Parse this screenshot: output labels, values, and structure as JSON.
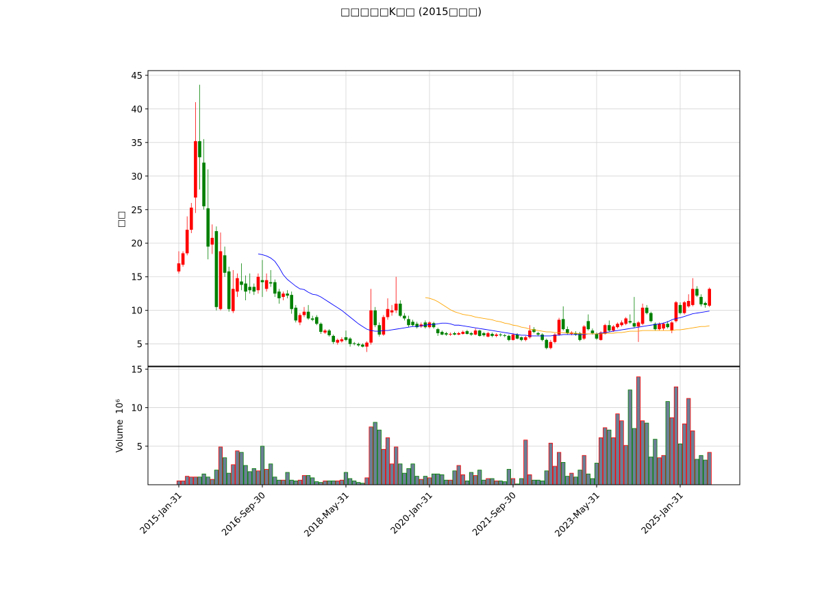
{
  "chart_data": {
    "type": "candlestick",
    "title": "□□□□□K□□ (2015□□□)",
    "ylabel": "□□",
    "categories": [
      "2015-Jan-31",
      null,
      null,
      null,
      null,
      null,
      null,
      null,
      null,
      null,
      null,
      null,
      null,
      null,
      null,
      null,
      null,
      null,
      null,
      null,
      "2016-Sep-30",
      null,
      null,
      null,
      null,
      null,
      null,
      null,
      null,
      null,
      null,
      null,
      null,
      null,
      null,
      null,
      null,
      null,
      null,
      null,
      "2018-May-31",
      null,
      null,
      null,
      null,
      null,
      null,
      null,
      null,
      null,
      null,
      null,
      null,
      null,
      null,
      null,
      null,
      null,
      null,
      null,
      "2020-Jan-31",
      null,
      null,
      null,
      null,
      null,
      null,
      null,
      null,
      null,
      null,
      null,
      null,
      null,
      null,
      null,
      null,
      null,
      null,
      null,
      "2021-Sep-30",
      null,
      null,
      null,
      null,
      null,
      null,
      null,
      null,
      null,
      null,
      null,
      null,
      null,
      null,
      null,
      null,
      null,
      null,
      null,
      "2023-May-31",
      null,
      null,
      null,
      null,
      null,
      null,
      null,
      null,
      null,
      null,
      null,
      null,
      null,
      null,
      null,
      null,
      null,
      null,
      null,
      "2025-Jan-31",
      null,
      null,
      null,
      null,
      null,
      null,
      null
    ],
    "open": [
      15.8,
      16.8,
      18.5,
      22.0,
      26.8,
      35.2,
      32.0,
      25.2,
      19.8,
      21.8,
      10.2,
      18.2,
      15.8,
      9.9,
      12.8,
      14.3,
      14.0,
      13.5,
      13.5,
      13.0,
      14.5,
      13.2,
      14.2,
      14.2,
      12.8,
      12.0,
      12.5,
      12.3,
      10.4,
      8.2,
      9.3,
      9.8,
      8.8,
      9.0,
      8.0,
      6.7,
      7.0,
      6.2,
      5.2,
      5.4,
      6.0,
      5.8,
      5.1,
      5.0,
      4.9,
      4.6,
      5.2,
      10.0,
      7.8,
      6.4,
      9.0,
      9.7,
      10.0,
      11.0,
      9.2,
      8.7,
      8.3,
      8.0,
      7.6,
      8.2,
      7.5,
      8.1,
      7.2,
      6.8,
      6.6,
      6.4,
      6.6,
      6.4,
      6.5,
      6.9,
      6.6,
      6.4,
      7.0,
      6.6,
      6.1,
      6.5,
      6.2,
      6.4,
      6.3,
      6.2,
      5.6,
      6.4,
      6.0,
      5.6,
      6.0,
      7.2,
      6.6,
      6.4,
      5.6,
      4.4,
      5.3,
      6.4,
      8.7,
      7.2,
      6.5,
      6.6,
      6.6,
      5.8,
      8.4,
      7.0,
      6.5,
      5.6,
      6.5,
      7.8,
      7.0,
      7.5,
      7.8,
      8.0,
      8.4,
      8.1,
      7.6,
      8.0,
      10.4,
      9.6,
      8.0,
      7.2,
      7.3,
      8.0,
      7.0,
      8.4,
      10.8,
      9.6,
      10.6,
      10.8,
      13.2,
      12.0,
      11.1,
      10.7
    ],
    "high": [
      18.8,
      18.8,
      24.0,
      26.0,
      41.0,
      43.6,
      35.5,
      31.0,
      22.8,
      22.5,
      21.6,
      19.5,
      16.5,
      16.0,
      15.5,
      17.0,
      15.2,
      15.5,
      14.0,
      15.5,
      17.5,
      15.5,
      16.0,
      14.6,
      13.2,
      12.8,
      13.0,
      12.8,
      10.8,
      9.6,
      10.5,
      10.8,
      9.2,
      9.3,
      8.2,
      7.2,
      7.2,
      6.4,
      5.8,
      6.0,
      7.0,
      6.0,
      5.3,
      5.2,
      5.1,
      5.4,
      13.2,
      10.5,
      8.2,
      9.3,
      11.8,
      10.8,
      15.0,
      11.5,
      9.6,
      9.2,
      8.6,
      8.3,
      8.2,
      8.5,
      8.4,
      8.3,
      7.4,
      7.0,
      6.8,
      6.7,
      6.8,
      6.8,
      7.0,
      7.1,
      6.8,
      7.3,
      7.1,
      6.8,
      6.8,
      6.7,
      6.6,
      6.6,
      6.5,
      6.4,
      6.6,
      6.6,
      6.1,
      6.2,
      7.8,
      7.5,
      6.8,
      6.6,
      5.8,
      5.6,
      6.6,
      8.9,
      10.6,
      7.6,
      6.9,
      6.9,
      6.8,
      7.8,
      9.4,
      7.3,
      6.7,
      6.9,
      8.0,
      8.5,
      7.8,
      8.2,
      8.5,
      9.0,
      9.4,
      12.0,
      8.4,
      11.0,
      10.8,
      9.8,
      8.2,
      8.2,
      8.2,
      8.4,
      8.4,
      11.4,
      11.2,
      11.4,
      12.4,
      14.8,
      13.6,
      12.4,
      11.3,
      13.4
    ],
    "low": [
      15.5,
      16.5,
      18.2,
      21.5,
      24.5,
      28.0,
      25.0,
      17.6,
      18.4,
      10.0,
      10.0,
      15.0,
      9.8,
      9.6,
      12.0,
      13.0,
      11.5,
      12.5,
      12.3,
      12.5,
      12.0,
      12.8,
      13.5,
      12.0,
      11.0,
      11.5,
      11.8,
      9.5,
      8.2,
      7.8,
      9.0,
      8.6,
      8.4,
      7.8,
      6.5,
      6.5,
      6.1,
      5.0,
      4.9,
      5.2,
      5.4,
      4.6,
      4.8,
      4.6,
      4.5,
      3.8,
      4.9,
      7.5,
      6.1,
      6.2,
      8.6,
      9.2,
      9.6,
      9.0,
      8.5,
      7.5,
      7.6,
      7.3,
      7.4,
      7.3,
      7.3,
      7.3,
      6.2,
      6.3,
      6.2,
      6.2,
      6.3,
      6.3,
      6.4,
      6.4,
      6.2,
      6.3,
      6.1,
      6.1,
      6.0,
      6.0,
      6.0,
      6.1,
      6.0,
      5.4,
      5.5,
      5.7,
      5.4,
      5.4,
      5.8,
      6.6,
      6.2,
      5.4,
      4.2,
      4.2,
      5.1,
      6.2,
      7.0,
      6.4,
      6.3,
      6.2,
      5.4,
      5.6,
      7.0,
      6.4,
      5.6,
      5.5,
      6.4,
      6.8,
      6.8,
      7.3,
      7.6,
      7.8,
      8.0,
      7.4,
      5.3,
      7.8,
      9.4,
      8.2,
      7.0,
      7.0,
      7.0,
      7.3,
      6.6,
      8.2,
      9.4,
      9.4,
      10.4,
      10.6,
      12.0,
      10.6,
      10.4,
      10.5
    ],
    "close": [
      17.0,
      18.5,
      22.0,
      25.3,
      35.2,
      32.8,
      25.5,
      19.5,
      20.8,
      10.5,
      18.8,
      15.6,
      10.2,
      13.2,
      14.8,
      13.8,
      12.8,
      13.0,
      12.8,
      15.0,
      14.2,
      14.5,
      14.0,
      12.5,
      11.8,
      12.5,
      12.2,
      10.2,
      8.5,
      9.3,
      9.8,
      8.8,
      8.6,
      8.0,
      6.8,
      7.0,
      6.3,
      5.3,
      5.6,
      5.7,
      5.6,
      5.0,
      5.0,
      4.8,
      4.6,
      5.2,
      10.0,
      7.8,
      6.4,
      9.0,
      10.2,
      10.0,
      11.0,
      9.2,
      8.8,
      7.8,
      7.8,
      7.5,
      7.9,
      7.5,
      8.2,
      7.5,
      6.6,
      6.4,
      6.4,
      6.5,
      6.4,
      6.6,
      6.8,
      6.5,
      6.4,
      7.0,
      6.2,
      6.3,
      6.6,
      6.2,
      6.4,
      6.3,
      6.2,
      5.6,
      6.4,
      5.8,
      5.6,
      6.0,
      7.0,
      6.8,
      6.4,
      5.6,
      4.4,
      5.3,
      6.4,
      8.6,
      7.2,
      6.6,
      6.7,
      6.4,
      5.6,
      7.6,
      7.2,
      6.6,
      5.8,
      6.7,
      7.8,
      7.0,
      7.6,
      8.0,
      8.2,
      8.8,
      8.2,
      7.6,
      8.2,
      10.4,
      9.6,
      8.4,
      7.2,
      8.0,
      8.0,
      7.5,
      8.2,
      11.2,
      9.6,
      11.2,
      11.4,
      13.2,
      12.2,
      10.9,
      10.8,
      13.2
    ],
    "up_color": "#ff0000",
    "down_color": "#008000",
    "series": [
      {
        "color": "#0000ff",
        "values": [
          null,
          null,
          null,
          null,
          null,
          null,
          null,
          null,
          null,
          null,
          null,
          null,
          null,
          null,
          null,
          null,
          null,
          null,
          null,
          18.4,
          18.3,
          18.1,
          17.8,
          17.3,
          16.4,
          15.3,
          14.6,
          14.1,
          13.6,
          13.2,
          13.1,
          12.7,
          12.4,
          12.3,
          12.0,
          11.6,
          11.2,
          10.8,
          10.4,
          10.0,
          9.5,
          9.0,
          8.5,
          8.0,
          7.6,
          7.2,
          7.0,
          6.9,
          6.9,
          7.0,
          7.0,
          7.1,
          7.2,
          7.3,
          7.4,
          7.5,
          7.6,
          7.6,
          7.7,
          7.8,
          7.9,
          7.9,
          8.0,
          8.1,
          8.1,
          8.0,
          7.8,
          7.8,
          7.7,
          7.6,
          7.5,
          7.4,
          7.3,
          7.2,
          7.1,
          7.0,
          6.9,
          6.8,
          6.7,
          6.6,
          6.5,
          6.4,
          6.3,
          6.3,
          6.2,
          6.2,
          6.2,
          6.2,
          6.2,
          6.2,
          6.3,
          6.3,
          6.4,
          6.4,
          6.4,
          6.4,
          6.4,
          6.4,
          6.5,
          6.5,
          6.5,
          6.6,
          6.7,
          6.8,
          6.9,
          7.0,
          7.1,
          7.2,
          7.3,
          7.4,
          7.5,
          7.6,
          7.7,
          7.8,
          7.9,
          8.0,
          8.1,
          8.3,
          8.6,
          8.8,
          8.9,
          9.1,
          9.3,
          9.5,
          9.6,
          9.7,
          9.8,
          9.9
        ]
      },
      {
        "color": "#ffa500",
        "values": [
          null,
          null,
          null,
          null,
          null,
          null,
          null,
          null,
          null,
          null,
          null,
          null,
          null,
          null,
          null,
          null,
          null,
          null,
          null,
          null,
          null,
          null,
          null,
          null,
          null,
          null,
          null,
          null,
          null,
          null,
          null,
          null,
          null,
          null,
          null,
          null,
          null,
          null,
          null,
          null,
          null,
          null,
          null,
          null,
          null,
          null,
          null,
          null,
          null,
          null,
          null,
          null,
          null,
          null,
          null,
          null,
          null,
          null,
          null,
          11.9,
          11.8,
          11.6,
          11.3,
          10.9,
          10.5,
          10.1,
          9.8,
          9.6,
          9.4,
          9.3,
          9.2,
          9.0,
          8.9,
          8.8,
          8.7,
          8.6,
          8.4,
          8.3,
          8.1,
          8.0,
          7.8,
          7.7,
          7.5,
          7.4,
          7.2,
          7.1,
          7.0,
          6.9,
          6.8,
          6.8,
          6.7,
          6.7,
          6.7,
          6.6,
          6.6,
          6.6,
          6.5,
          6.5,
          6.5,
          6.5,
          6.5,
          6.5,
          6.6,
          6.6,
          6.6,
          6.7,
          6.7,
          6.8,
          6.9,
          6.9,
          6.9,
          7.0,
          7.0,
          7.0,
          7.0,
          7.0,
          7.0,
          7.0,
          7.0,
          7.1,
          7.1,
          7.2,
          7.3,
          7.4,
          7.5,
          7.6,
          7.6,
          7.7
        ]
      }
    ],
    "ylim": [
      1.7,
      45.7
    ],
    "yticks": [
      5,
      10,
      15,
      20,
      25,
      30,
      35,
      40,
      45
    ],
    "grid": true,
    "volume": {
      "ylabel": "Volume",
      "offset_label": "10⁶",
      "color": "#6b7f96",
      "ylim": [
        0,
        15.3
      ],
      "yticks": [
        5,
        10,
        15
      ],
      "values": [
        0.5,
        0.5,
        1.1,
        1.0,
        1.0,
        1.0,
        1.4,
        1.0,
        0.7,
        1.9,
        4.9,
        3.5,
        1.5,
        2.6,
        4.4,
        4.2,
        2.5,
        1.7,
        2.1,
        1.8,
        5.0,
        2.0,
        2.7,
        1.0,
        0.6,
        0.6,
        1.6,
        0.6,
        0.5,
        0.6,
        1.2,
        1.2,
        0.9,
        0.4,
        0.3,
        0.5,
        0.5,
        0.5,
        0.5,
        0.6,
        1.6,
        0.8,
        0.5,
        0.3,
        0.2,
        0.9,
        7.5,
        8.1,
        7.1,
        4.6,
        6.1,
        2.7,
        4.9,
        2.7,
        1.5,
        2.1,
        2.7,
        1.1,
        0.7,
        1.1,
        0.9,
        1.4,
        1.4,
        1.3,
        0.6,
        0.6,
        1.8,
        2.5,
        1.3,
        0.5,
        1.6,
        1.2,
        1.9,
        0.6,
        0.8,
        0.8,
        0.5,
        0.5,
        0.4,
        2.0,
        0.8,
        0.1,
        0.8,
        5.8,
        1.3,
        0.6,
        0.6,
        0.5,
        1.8,
        5.4,
        2.4,
        4.2,
        2.9,
        1.1,
        1.5,
        1.0,
        1.9,
        3.8,
        1.4,
        0.8,
        2.8,
        6.1,
        7.4,
        7.1,
        6.1,
        9.2,
        8.3,
        5.1,
        12.3,
        7.3,
        14.0,
        8.3,
        8.0,
        3.6,
        5.9,
        3.5,
        3.8,
        10.8,
        8.7,
        12.7,
        5.3,
        7.9,
        11.2,
        7.0,
        3.3,
        3.8,
        3.2,
        4.2
      ]
    }
  }
}
